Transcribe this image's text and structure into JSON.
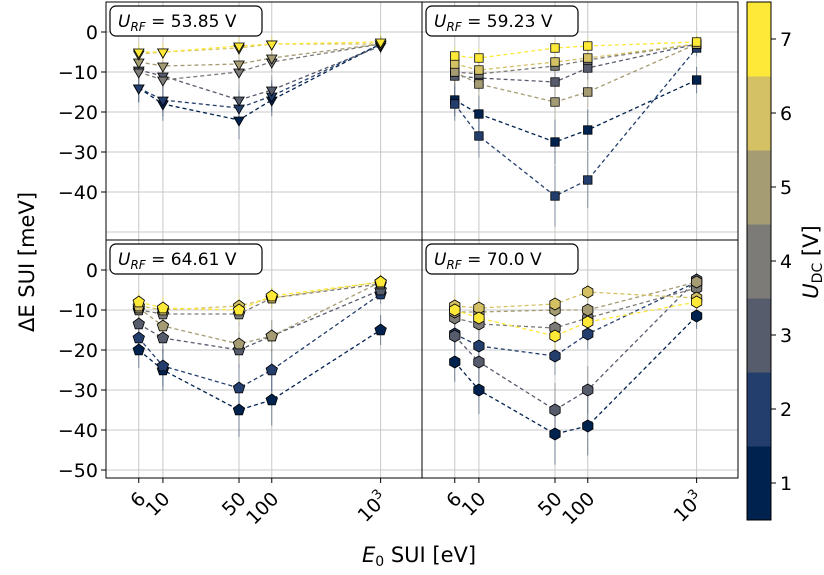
{
  "figure": {
    "ylabel": "ΔE SUI [meV]",
    "xlabel_main": "E",
    "xlabel_sub": "0",
    "xlabel_rest": " SUI [eV]",
    "colorbar_label_main": "U",
    "colorbar_label_sub": "DC",
    "colorbar_label_rest": " [V]"
  },
  "chart_data": {
    "type": "scatter",
    "x_scale": "log",
    "xlim": [
      3,
      2400
    ],
    "ylim": [
      -52,
      7.5
    ],
    "x_ticks": [
      {
        "value": 6,
        "label": "6"
      },
      {
        "value": 10,
        "label": "10"
      },
      {
        "value": 50,
        "label": "50"
      },
      {
        "value": 100,
        "label": "100"
      },
      {
        "value": 1000,
        "label": "10",
        "sup": "3"
      }
    ],
    "y_ticks": [
      {
        "value": 0,
        "label": "0"
      },
      {
        "value": -10,
        "label": "−10"
      },
      {
        "value": -20,
        "label": "−20"
      },
      {
        "value": -30,
        "label": "−30"
      },
      {
        "value": -40,
        "label": "−40"
      },
      {
        "value": -50,
        "label": "−50"
      }
    ],
    "x": [
      6,
      10,
      50,
      100,
      1000
    ],
    "grid": true,
    "colormap": "cividis",
    "colorbar": {
      "range": [
        0.5,
        7.5
      ],
      "ticks": [
        "1",
        "2",
        "3",
        "4",
        "5",
        "6",
        "7"
      ],
      "colors": [
        "#00224e",
        "#233e6c",
        "#575c6d",
        "#7c7b78",
        "#a59c74",
        "#d3c164",
        "#fee838"
      ]
    },
    "panels": [
      {
        "label_main": "U",
        "label_sub": "RF",
        "label_value": " = 53.85 V",
        "marker": "triangle-down",
        "series": [
          {
            "u_dc": 1,
            "values": [
              -14,
              -18,
              -22,
              -17,
              -3
            ]
          },
          {
            "u_dc": 2,
            "values": [
              -14,
              -17,
              -19,
              -16,
              -3
            ]
          },
          {
            "u_dc": 3,
            "values": [
              -9.5,
              -11,
              -17,
              -14.5,
              -3.5
            ]
          },
          {
            "u_dc": 4,
            "values": [
              -10,
              -12,
              -10,
              -7.5,
              -3
            ]
          },
          {
            "u_dc": 5,
            "values": [
              -7.5,
              -8.5,
              -8,
              -6.5,
              -3
            ]
          },
          {
            "u_dc": 6,
            "values": [
              -5.5,
              -5,
              -4,
              -3,
              -3
            ]
          },
          {
            "u_dc": 7,
            "values": [
              -5,
              -5,
              -3.5,
              -3,
              -2.5
            ]
          }
        ]
      },
      {
        "label_main": "U",
        "label_sub": "RF",
        "label_value": " = 59.23 V",
        "marker": "square",
        "series": [
          {
            "u_dc": 1,
            "values": [
              -17,
              -20.5,
              -27.5,
              -24.5,
              -12
            ]
          },
          {
            "u_dc": 2,
            "values": [
              -18,
              -26,
              -41,
              -37,
              -4
            ]
          },
          {
            "u_dc": 3,
            "values": [
              -11,
              -11.5,
              -12.5,
              -9,
              -3
            ]
          },
          {
            "u_dc": 4,
            "values": [
              -10,
              -10.5,
              -8.5,
              -7,
              -3
            ]
          },
          {
            "u_dc": 5,
            "values": [
              -10,
              -13,
              -17.5,
              -15,
              -3
            ]
          },
          {
            "u_dc": 6,
            "values": [
              -8,
              -9.5,
              -7.5,
              -6.5,
              -3
            ]
          },
          {
            "u_dc": 7,
            "values": [
              -6,
              -6.5,
              -4,
              -3.5,
              -2.5
            ]
          }
        ]
      },
      {
        "label_main": "U",
        "label_sub": "RF",
        "label_value": " = 64.61 V",
        "marker": "pentagon",
        "series": [
          {
            "u_dc": 1,
            "values": [
              -20,
              -25,
              -35,
              -32.5,
              -15
            ]
          },
          {
            "u_dc": 2,
            "values": [
              -17,
              -24,
              -29.5,
              -25,
              -6
            ]
          },
          {
            "u_dc": 3,
            "values": [
              -13.5,
              -17,
              -20,
              -16.5,
              -5
            ]
          },
          {
            "u_dc": 4,
            "values": [
              -10,
              -11,
              -11,
              -7,
              -3.5
            ]
          },
          {
            "u_dc": 5,
            "values": [
              -9.5,
              -14,
              -18.5,
              -16.5,
              -3
            ]
          },
          {
            "u_dc": 6,
            "values": [
              -9,
              -10,
              -9,
              -7,
              -3
            ]
          },
          {
            "u_dc": 7,
            "values": [
              -8,
              -9.5,
              -10,
              -6.5,
              -3
            ]
          }
        ]
      },
      {
        "label_main": "U",
        "label_sub": "RF",
        "label_value": " = 70.0 V",
        "marker": "hexagon",
        "series": [
          {
            "u_dc": 1,
            "values": [
              -23,
              -30,
              -41,
              -39,
              -11.5
            ]
          },
          {
            "u_dc": 2,
            "values": [
              -16,
              -19,
              -21.5,
              -16,
              -3
            ]
          },
          {
            "u_dc": 3,
            "values": [
              -16.5,
              -23,
              -35,
              -30,
              -2.5
            ]
          },
          {
            "u_dc": 4,
            "values": [
              -12,
              -13.5,
              -14.5,
              -12,
              -4.5
            ]
          },
          {
            "u_dc": 5,
            "values": [
              -10.5,
              -10.5,
              -10,
              -10,
              -3
            ]
          },
          {
            "u_dc": 6,
            "values": [
              -9,
              -9.5,
              -8.5,
              -5.5,
              -7
            ]
          },
          {
            "u_dc": 7,
            "values": [
              -10,
              -12,
              -16.5,
              -13,
              -8
            ]
          }
        ]
      }
    ]
  }
}
